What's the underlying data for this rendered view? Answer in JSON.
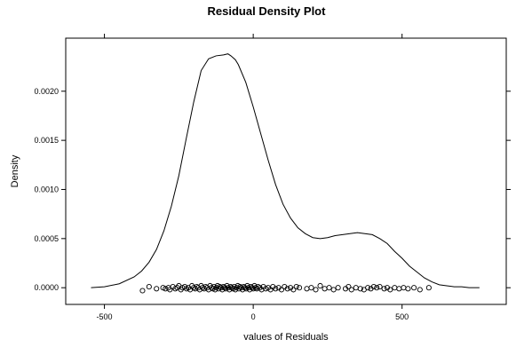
{
  "chart_data": {
    "type": "line",
    "title": "Residual Density Plot",
    "xlabel": "values of Residuals",
    "ylabel": "Density",
    "xlim": [
      -630,
      850
    ],
    "ylim": [
      -0.00017,
      0.00254
    ],
    "x_ticks": [
      -500,
      0,
      500
    ],
    "x_tick_labels": [
      "-500",
      "0",
      "500"
    ],
    "y_ticks": [
      0.0,
      0.0005,
      0.001,
      0.0015,
      0.002
    ],
    "y_tick_labels": [
      "0.0000",
      "0.0005",
      "0.0010",
      "0.0015",
      "0.0020"
    ],
    "grid": false,
    "legend": "none",
    "series": [
      {
        "values_x": [
          -545,
          -500,
          -450,
          -400,
          -375,
          -350,
          -325,
          -300,
          -275,
          -250,
          -225,
          -200,
          -175,
          -150,
          -125,
          -100,
          -85,
          -75,
          -60,
          -50,
          -25,
          0,
          25,
          50,
          75,
          100,
          125,
          150,
          175,
          200,
          225,
          250,
          275,
          300,
          325,
          350,
          375,
          400,
          425,
          450,
          475,
          500,
          525,
          550,
          575,
          600,
          625,
          650,
          675,
          700,
          725,
          760
        ],
        "values_y": [
          0.0,
          1e-05,
          4e-05,
          0.00011,
          0.00017,
          0.00026,
          0.00039,
          0.00058,
          0.00083,
          0.00114,
          0.00152,
          0.00189,
          0.00221,
          0.00233,
          0.00236,
          0.00237,
          0.00238,
          0.00236,
          0.00232,
          0.00227,
          0.00209,
          0.00184,
          0.00157,
          0.0013,
          0.00105,
          0.00085,
          0.00071,
          0.00061,
          0.00055,
          0.00051,
          0.0005,
          0.00051,
          0.00053,
          0.00054,
          0.00055,
          0.00056,
          0.00055,
          0.00054,
          0.0005,
          0.00045,
          0.00037,
          0.0003,
          0.00022,
          0.00016,
          0.0001,
          6e-05,
          3e-05,
          2e-05,
          1e-05,
          1e-05,
          0.0,
          0.0
        ]
      }
    ],
    "rug_points": [
      {
        "x": -372,
        "y": -3e-05
      },
      {
        "x": -350,
        "y": 1e-05
      },
      {
        "x": -325,
        "y": -1e-05
      },
      {
        "x": -303,
        "y": 0.0
      },
      {
        "x": -295,
        "y": -1e-05
      },
      {
        "x": -285,
        "y": 0.0
      },
      {
        "x": -280,
        "y": -2e-05
      },
      {
        "x": -270,
        "y": 1e-05
      },
      {
        "x": -262,
        "y": -1e-05
      },
      {
        "x": -255,
        "y": 0.0
      },
      {
        "x": -250,
        "y": 2e-05
      },
      {
        "x": -243,
        "y": -2e-05
      },
      {
        "x": -238,
        "y": 0.0
      },
      {
        "x": -230,
        "y": 1e-05
      },
      {
        "x": -224,
        "y": -1e-05
      },
      {
        "x": -218,
        "y": 0.0
      },
      {
        "x": -212,
        "y": -2e-05
      },
      {
        "x": -206,
        "y": 2e-05
      },
      {
        "x": -200,
        "y": 0.0
      },
      {
        "x": -195,
        "y": -1e-05
      },
      {
        "x": -190,
        "y": 1e-05
      },
      {
        "x": -185,
        "y": 0.0
      },
      {
        "x": -180,
        "y": -2e-05
      },
      {
        "x": -175,
        "y": 2e-05
      },
      {
        "x": -170,
        "y": 0.0
      },
      {
        "x": -165,
        "y": -1e-05
      },
      {
        "x": -160,
        "y": 1e-05
      },
      {
        "x": -155,
        "y": 0.0
      },
      {
        "x": -150,
        "y": -2e-05
      },
      {
        "x": -145,
        "y": 2e-05
      },
      {
        "x": -140,
        "y": 0.0
      },
      {
        "x": -136,
        "y": -1e-05
      },
      {
        "x": -132,
        "y": 1e-05
      },
      {
        "x": -128,
        "y": -2e-05
      },
      {
        "x": -124,
        "y": 0.0
      },
      {
        "x": -120,
        "y": 2e-05
      },
      {
        "x": -116,
        "y": -1e-05
      },
      {
        "x": -112,
        "y": 1e-05
      },
      {
        "x": -108,
        "y": 0.0
      },
      {
        "x": -104,
        "y": -2e-05
      },
      {
        "x": -100,
        "y": 1e-05
      },
      {
        "x": -96,
        "y": 0.0
      },
      {
        "x": -92,
        "y": -1e-05
      },
      {
        "x": -88,
        "y": 2e-05
      },
      {
        "x": -84,
        "y": 0.0
      },
      {
        "x": -80,
        "y": -2e-05
      },
      {
        "x": -76,
        "y": 1e-05
      },
      {
        "x": -72,
        "y": 0.0
      },
      {
        "x": -68,
        "y": -1e-05
      },
      {
        "x": -64,
        "y": 1e-05
      },
      {
        "x": -60,
        "y": -2e-05
      },
      {
        "x": -56,
        "y": 0.0
      },
      {
        "x": -52,
        "y": 2e-05
      },
      {
        "x": -48,
        "y": -1e-05
      },
      {
        "x": -44,
        "y": 1e-05
      },
      {
        "x": -40,
        "y": 0.0
      },
      {
        "x": -36,
        "y": -2e-05
      },
      {
        "x": -32,
        "y": 1e-05
      },
      {
        "x": -28,
        "y": 0.0
      },
      {
        "x": -24,
        "y": -1e-05
      },
      {
        "x": -20,
        "y": 2e-05
      },
      {
        "x": -16,
        "y": 0.0
      },
      {
        "x": -12,
        "y": -2e-05
      },
      {
        "x": -8,
        "y": 1e-05
      },
      {
        "x": -4,
        "y": 0.0
      },
      {
        "x": 0,
        "y": -1e-05
      },
      {
        "x": 4,
        "y": 2e-05
      },
      {
        "x": 8,
        "y": 0.0
      },
      {
        "x": 12,
        "y": -1e-05
      },
      {
        "x": 16,
        "y": 1e-05
      },
      {
        "x": 22,
        "y": 0.0
      },
      {
        "x": 28,
        "y": -2e-05
      },
      {
        "x": 34,
        "y": 1e-05
      },
      {
        "x": 42,
        "y": -1e-05
      },
      {
        "x": 50,
        "y": 0.0
      },
      {
        "x": 58,
        "y": -2e-05
      },
      {
        "x": 66,
        "y": 1e-05
      },
      {
        "x": 75,
        "y": -1e-05
      },
      {
        "x": 85,
        "y": 0.0
      },
      {
        "x": 95,
        "y": -2e-05
      },
      {
        "x": 105,
        "y": 1e-05
      },
      {
        "x": 115,
        "y": -1e-05
      },
      {
        "x": 125,
        "y": 0.0
      },
      {
        "x": 135,
        "y": -2e-05
      },
      {
        "x": 145,
        "y": 1e-05
      },
      {
        "x": 155,
        "y": 0.0
      },
      {
        "x": 180,
        "y": -1e-05
      },
      {
        "x": 195,
        "y": 0.0
      },
      {
        "x": 210,
        "y": -2e-05
      },
      {
        "x": 225,
        "y": 2e-05
      },
      {
        "x": 240,
        "y": -1e-05
      },
      {
        "x": 255,
        "y": 0.0
      },
      {
        "x": 270,
        "y": -2e-05
      },
      {
        "x": 285,
        "y": 0.0
      },
      {
        "x": 310,
        "y": -1e-05
      },
      {
        "x": 320,
        "y": 1e-05
      },
      {
        "x": 330,
        "y": -2e-05
      },
      {
        "x": 345,
        "y": 0.0
      },
      {
        "x": 360,
        "y": -1e-05
      },
      {
        "x": 372,
        "y": -2e-05
      },
      {
        "x": 385,
        "y": 0.0
      },
      {
        "x": 395,
        "y": -1e-05
      },
      {
        "x": 405,
        "y": 1e-05
      },
      {
        "x": 415,
        "y": 0.0
      },
      {
        "x": 425,
        "y": 1e-05
      },
      {
        "x": 440,
        "y": -1e-05
      },
      {
        "x": 450,
        "y": 0.0
      },
      {
        "x": 460,
        "y": -2e-05
      },
      {
        "x": 475,
        "y": 0.0
      },
      {
        "x": 490,
        "y": -1e-05
      },
      {
        "x": 505,
        "y": 0.0
      },
      {
        "x": 520,
        "y": -1e-05
      },
      {
        "x": 540,
        "y": 0.0
      },
      {
        "x": 560,
        "y": -2e-05
      },
      {
        "x": 590,
        "y": 0.0
      }
    ]
  }
}
